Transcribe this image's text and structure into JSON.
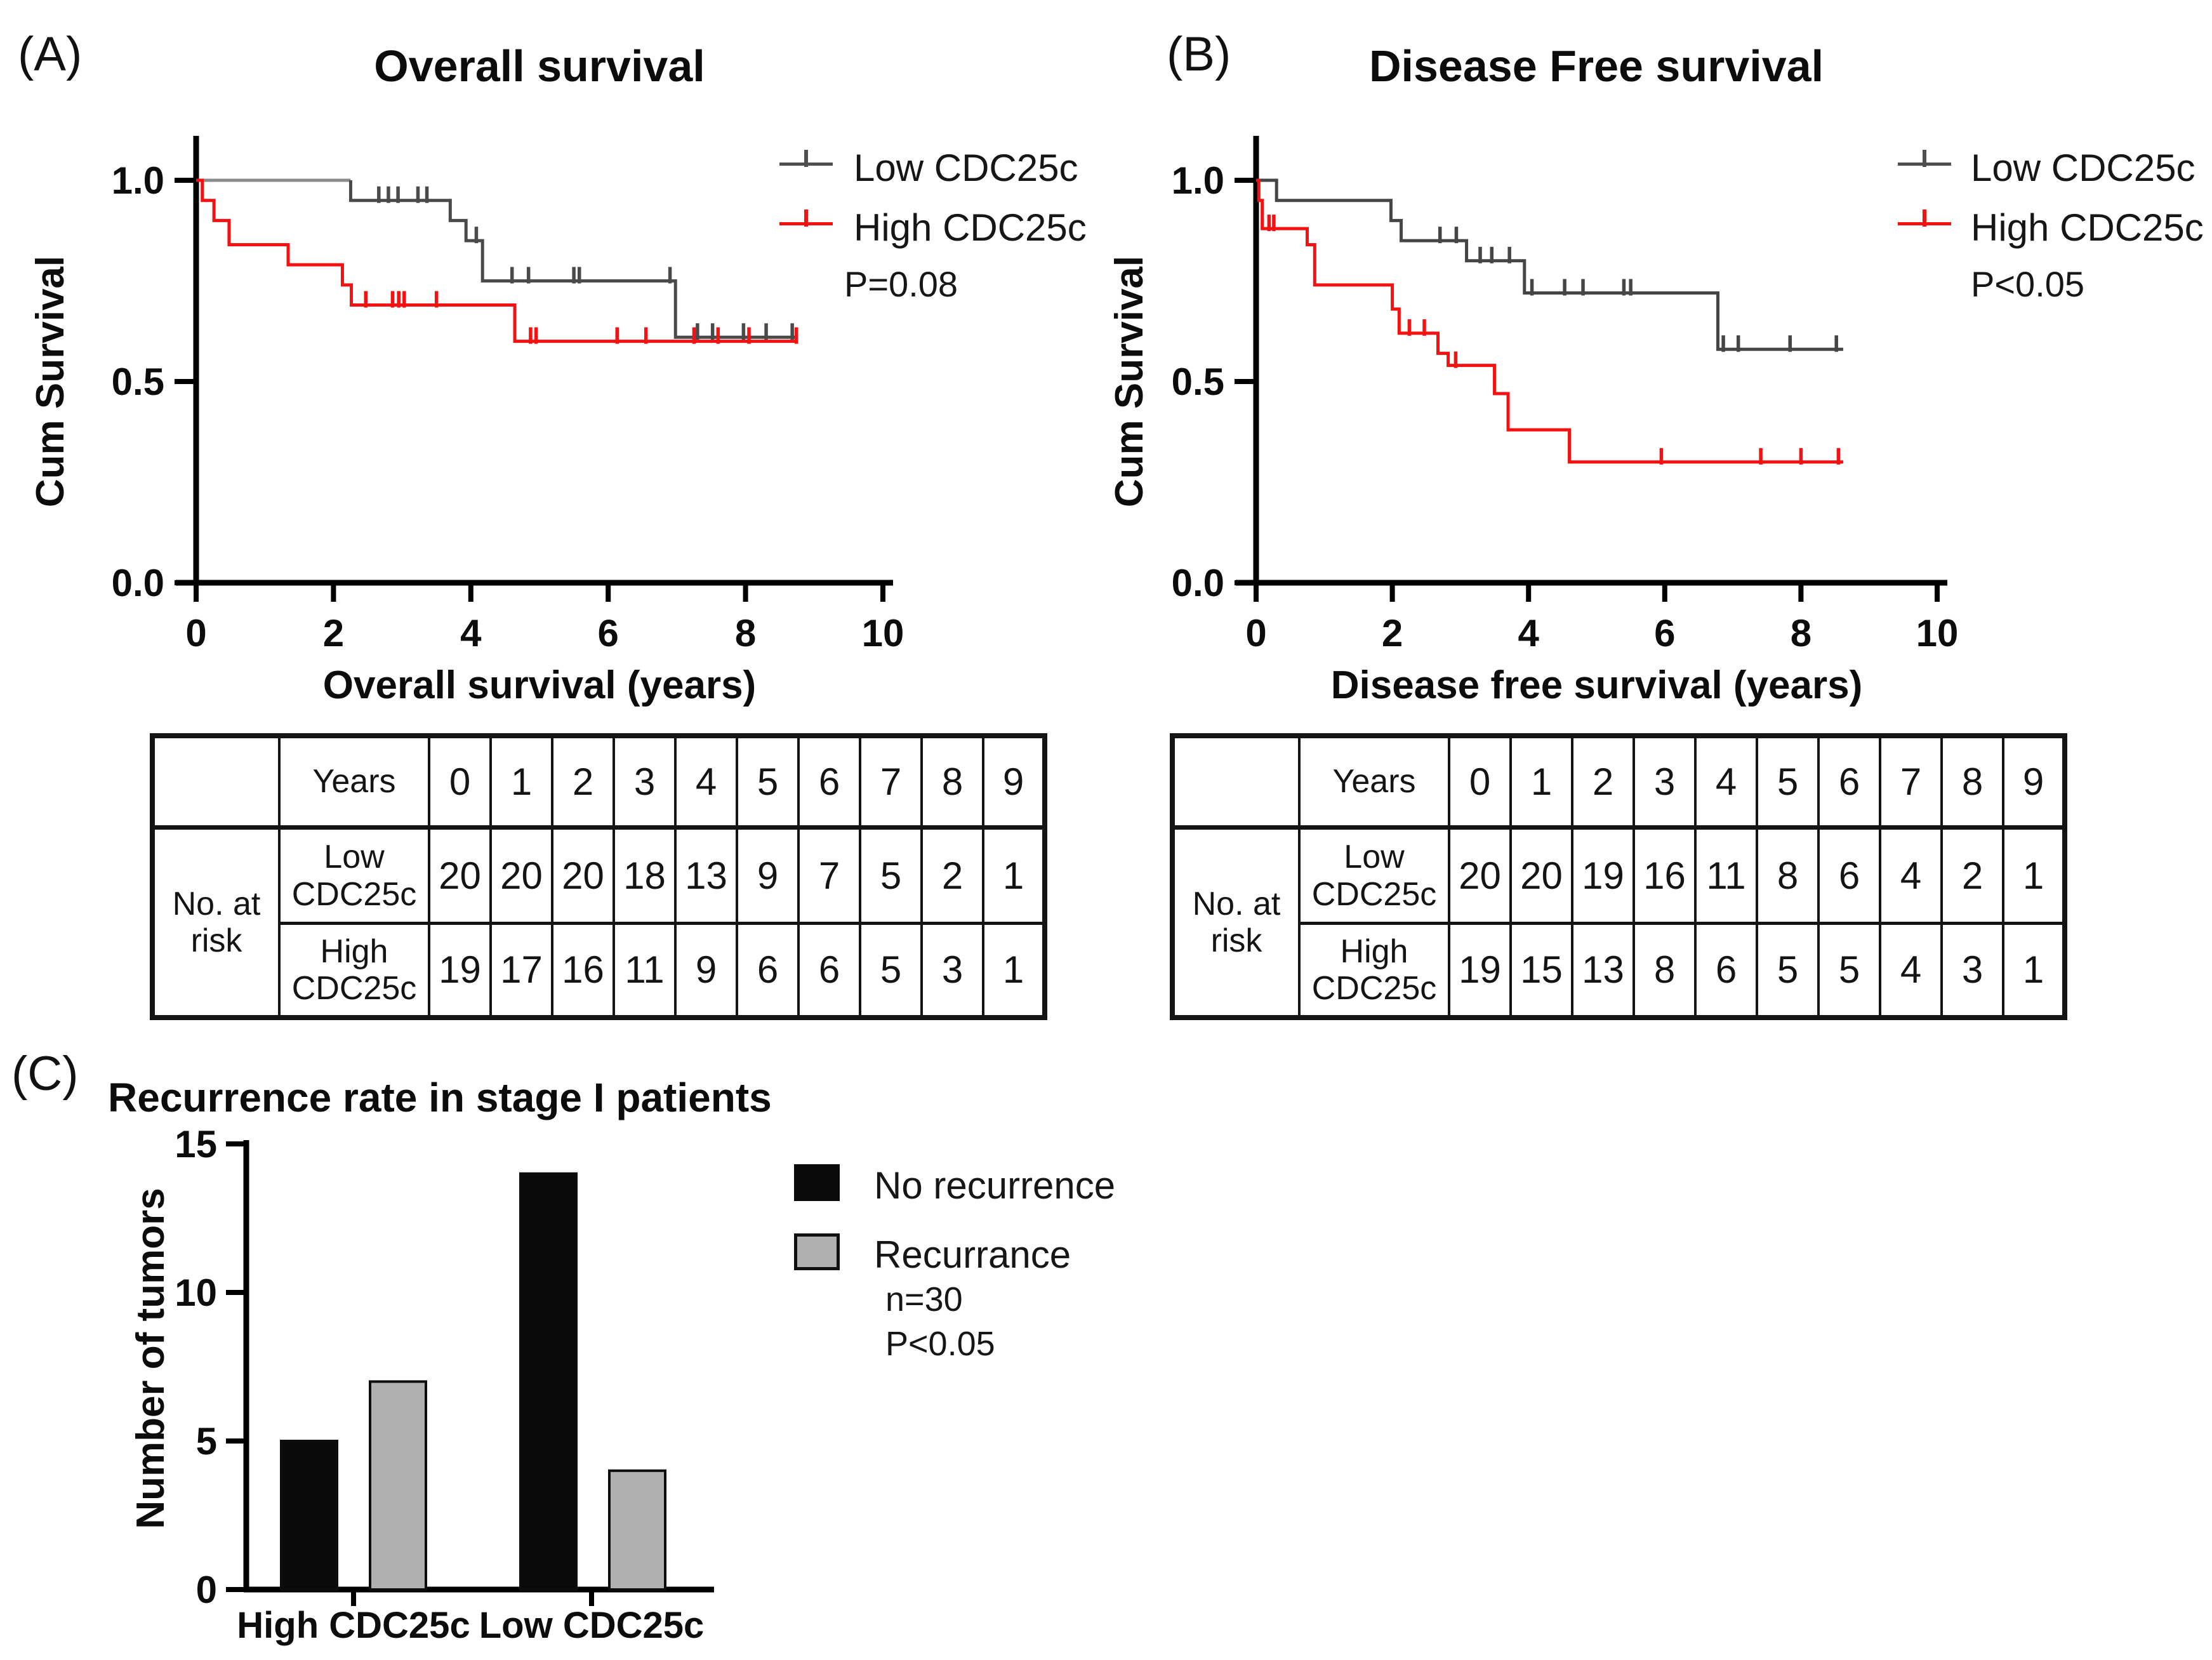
{
  "figure": {
    "background": "#ffffff",
    "panel_a": {
      "label": "(A)",
      "legend": {
        "low": "Low CDC25c",
        "high": "High CDC25c",
        "p_value": "P=0.08"
      }
    },
    "panel_b": {
      "label": "(B)",
      "legend": {
        "low": "Low CDC25c",
        "high": "High CDC25c",
        "p_value": "P<0.05"
      }
    },
    "panel_c": {
      "label": "(C)",
      "legend": {
        "no_recurrence": "No recurrence",
        "recurrence": "Recurrance",
        "n": "n=30",
        "p_value": "P<0.05"
      }
    },
    "colors": {
      "low_curve": "#4a4a4a",
      "low_curve_start": "#8a8a8a",
      "high_curve": "#f51111",
      "axis": "#000000",
      "black_bar": "#0a0a0a",
      "gray_bar": "#b0b0b0"
    }
  },
  "chart_data": [
    {
      "type": "line",
      "subtype": "kaplan-meier",
      "title": "Overall survival",
      "xlabel": "Overall survival (years)",
      "ylabel": "Cum Survival",
      "xlim": [
        0,
        10
      ],
      "ylim": [
        0.0,
        1.0
      ],
      "xticks": [
        0,
        2,
        4,
        6,
        8,
        10
      ],
      "yticks": [
        {
          "label": "1.0",
          "value": 1.0
        },
        {
          "label": "0.5",
          "value": 0.5
        },
        {
          "label": "0.0",
          "value": 0.0
        }
      ],
      "p_value": "P=0.08",
      "legend_position": "upper right",
      "series": [
        {
          "name": "Low CDC25c",
          "color": "#4a4a4a",
          "start_color": "#8a8a8a",
          "start": [
            0,
            1.0
          ],
          "steps": [
            [
              2.25,
              0.95
            ],
            [
              3.7,
              0.9
            ],
            [
              3.93,
              0.85
            ],
            [
              4.17,
              0.75
            ],
            [
              6.98,
              0.61
            ]
          ],
          "end": 8.72,
          "censors": [
            [
              2.66,
              0.95
            ],
            [
              2.8,
              0.95
            ],
            [
              2.94,
              0.95
            ],
            [
              3.23,
              0.95
            ],
            [
              3.36,
              0.95
            ],
            [
              4.08,
              0.85
            ],
            [
              4.6,
              0.75
            ],
            [
              4.84,
              0.75
            ],
            [
              5.5,
              0.75
            ],
            [
              5.58,
              0.75
            ],
            [
              6.9,
              0.75
            ],
            [
              7.3,
              0.61
            ],
            [
              7.52,
              0.61
            ],
            [
              7.97,
              0.61
            ],
            [
              8.3,
              0.61
            ],
            [
              8.68,
              0.61
            ]
          ]
        },
        {
          "name": "High CDC25c",
          "color": "#f51111",
          "start": [
            0,
            1.0
          ],
          "steps": [
            [
              0.09,
              0.95
            ],
            [
              0.26,
              0.9
            ],
            [
              0.48,
              0.84
            ],
            [
              1.34,
              0.79
            ],
            [
              2.13,
              0.74
            ],
            [
              2.26,
              0.69
            ],
            [
              4.64,
              0.6
            ]
          ],
          "end": 8.75,
          "censors": [
            [
              2.47,
              0.69
            ],
            [
              2.86,
              0.69
            ],
            [
              2.95,
              0.69
            ],
            [
              3.03,
              0.69
            ],
            [
              3.5,
              0.69
            ],
            [
              4.87,
              0.6
            ],
            [
              4.95,
              0.6
            ],
            [
              6.13,
              0.6
            ],
            [
              6.55,
              0.6
            ],
            [
              7.25,
              0.6
            ],
            [
              7.6,
              0.6
            ],
            [
              8.05,
              0.6
            ],
            [
              8.74,
              0.6
            ]
          ]
        }
      ],
      "risk_table": {
        "corner": "",
        "col_header": "Years",
        "row_header": "No. at\nrisk",
        "years": [
          "0",
          "1",
          "2",
          "3",
          "4",
          "5",
          "6",
          "7",
          "8",
          "9"
        ],
        "rows": [
          {
            "label": "Low\nCDC25c",
            "values": [
              "20",
              "20",
              "20",
              "18",
              "13",
              "9",
              "7",
              "5",
              "2",
              "1"
            ]
          },
          {
            "label": "High\nCDC25c",
            "values": [
              "19",
              "17",
              "16",
              "11",
              "9",
              "6",
              "6",
              "5",
              "3",
              "1"
            ]
          }
        ]
      }
    },
    {
      "type": "line",
      "subtype": "kaplan-meier",
      "title": "Disease Free survival",
      "xlabel": "Disease free survival (years)",
      "ylabel": "Cum Survival",
      "xlim": [
        0,
        10
      ],
      "ylim": [
        0.0,
        1.0
      ],
      "xticks": [
        0,
        2,
        4,
        6,
        8,
        10
      ],
      "yticks": [
        {
          "label": "1.0",
          "value": 1.0
        },
        {
          "label": "0.5",
          "value": 0.5
        },
        {
          "label": "0.0",
          "value": 0.0
        }
      ],
      "p_value": "P<0.05",
      "legend_position": "upper right",
      "series": [
        {
          "name": "Low CDC25c",
          "color": "#454545",
          "start": [
            0,
            1.0
          ],
          "steps": [
            [
              0.3,
              0.95
            ],
            [
              1.98,
              0.9
            ],
            [
              2.13,
              0.85
            ],
            [
              3.09,
              0.8
            ],
            [
              3.94,
              0.72
            ],
            [
              6.78,
              0.58
            ]
          ],
          "end": 8.62,
          "censors": [
            [
              2.7,
              0.85
            ],
            [
              2.94,
              0.85
            ],
            [
              3.29,
              0.8
            ],
            [
              3.46,
              0.8
            ],
            [
              3.72,
              0.8
            ],
            [
              4.05,
              0.72
            ],
            [
              4.53,
              0.72
            ],
            [
              4.8,
              0.72
            ],
            [
              5.4,
              0.72
            ],
            [
              5.5,
              0.72
            ],
            [
              6.86,
              0.58
            ],
            [
              7.08,
              0.58
            ],
            [
              7.84,
              0.58
            ],
            [
              8.52,
              0.58
            ]
          ]
        },
        {
          "name": "High CDC25c",
          "color": "#f51111",
          "start": [
            0,
            1.0
          ],
          "steps": [
            [
              0.04,
              0.95
            ],
            [
              0.09,
              0.88
            ],
            [
              0.75,
              0.84
            ],
            [
              0.86,
              0.74
            ],
            [
              2.0,
              0.68
            ],
            [
              2.1,
              0.62
            ],
            [
              2.67,
              0.57
            ],
            [
              2.82,
              0.54
            ],
            [
              3.5,
              0.47
            ],
            [
              3.7,
              0.38
            ],
            [
              4.6,
              0.3
            ]
          ],
          "end": 8.62,
          "censors": [
            [
              0.19,
              0.88
            ],
            [
              0.26,
              0.88
            ],
            [
              2.25,
              0.62
            ],
            [
              2.47,
              0.62
            ],
            [
              2.93,
              0.54
            ],
            [
              5.95,
              0.3
            ],
            [
              7.41,
              0.3
            ],
            [
              8.0,
              0.3
            ],
            [
              8.55,
              0.3
            ]
          ]
        }
      ],
      "risk_table": {
        "corner": "",
        "col_header": "Years",
        "row_header": "No. at\nrisk",
        "years": [
          "0",
          "1",
          "2",
          "3",
          "4",
          "5",
          "6",
          "7",
          "8",
          "9"
        ],
        "rows": [
          {
            "label": "Low\nCDC25c",
            "values": [
              "20",
              "20",
              "19",
              "16",
              "11",
              "8",
              "6",
              "4",
              "2",
              "1"
            ]
          },
          {
            "label": "High\nCDC25c",
            "values": [
              "19",
              "15",
              "13",
              "8",
              "6",
              "5",
              "5",
              "4",
              "3",
              "1"
            ]
          }
        ]
      }
    },
    {
      "type": "bar",
      "title": "Recurrence rate in stage I patients",
      "xlabel": "",
      "ylabel": "Number of tumors",
      "categories": [
        "High CDC25c",
        "Low CDC25c"
      ],
      "series": [
        {
          "name": "No recurrence",
          "color": "#0a0a0a",
          "values": [
            5,
            14
          ]
        },
        {
          "name": "Recurrance",
          "color": "#b0b0b0",
          "values": [
            7,
            4
          ]
        }
      ],
      "yticks": [
        0,
        5,
        10,
        15
      ],
      "ylim": [
        0,
        15
      ],
      "grid": false,
      "annotations": [
        "n=30",
        "P<0.05"
      ]
    }
  ]
}
